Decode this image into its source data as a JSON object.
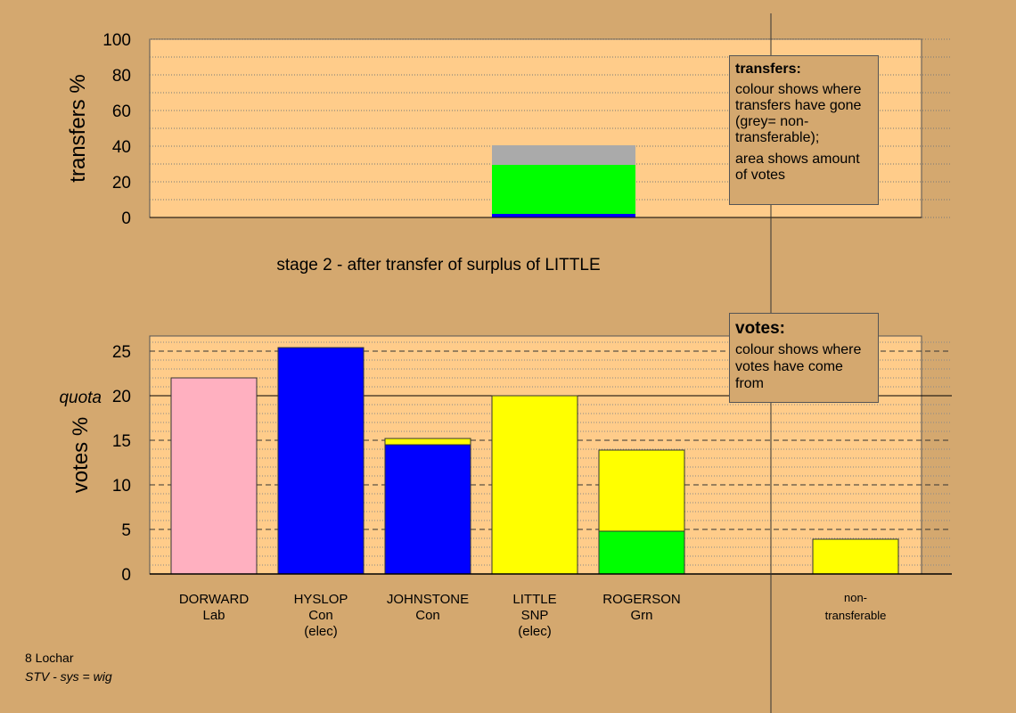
{
  "chart_data": [
    {
      "type": "bar",
      "stacked": true,
      "ylabel": "transfers %",
      "ylim": [
        0,
        100
      ],
      "yticks": [
        0,
        20,
        40,
        60,
        80,
        100
      ],
      "caption": "stage 2 - after transfer of surplus of LITTLE",
      "bars": [
        {
          "slot": 3,
          "segments": [
            {
              "value": 2,
              "color": "#0000ff"
            },
            {
              "value": 27.5,
              "color": "#00ff00"
            },
            {
              "value": 11,
              "color": "#aaaaaa"
            }
          ]
        }
      ],
      "grid": true
    },
    {
      "type": "bar",
      "stacked": true,
      "ylabel": "votes %",
      "quota_label": "quota",
      "quota": 20,
      "ylim": [
        0,
        25
      ],
      "yticks": [
        0,
        5,
        10,
        15,
        20,
        25
      ],
      "grid": true,
      "candidates": [
        {
          "name": "DORWARD",
          "party": "Lab",
          "note": "",
          "segments": [
            {
              "value": 22,
              "color": "#ffb0c0"
            }
          ]
        },
        {
          "name": "HYSLOP",
          "party": "Con",
          "note": "(elec)",
          "segments": [
            {
              "value": 25.4,
              "color": "#0000ff"
            }
          ]
        },
        {
          "name": "JOHNSTONE",
          "party": "Con",
          "note": "",
          "segments": [
            {
              "value": 14.5,
              "color": "#0000ff"
            },
            {
              "value": 0.7,
              "color": "#ffff00"
            }
          ]
        },
        {
          "name": "LITTLE",
          "party": "SNP",
          "note": "(elec)",
          "segments": [
            {
              "value": 20,
              "color": "#ffff00"
            }
          ]
        },
        {
          "name": "ROGERSON",
          "party": "Grn",
          "note": "",
          "segments": [
            {
              "value": 4.8,
              "color": "#00ff00"
            },
            {
              "value": 9.1,
              "color": "#ffff00"
            }
          ]
        },
        {
          "name": "",
          "party": "",
          "note": "",
          "segments": []
        }
      ],
      "non_transferable": {
        "line1": "non-",
        "line2": "transferable",
        "segments": [
          {
            "value": 3.9,
            "color": "#ffff00"
          }
        ]
      }
    }
  ],
  "legend_transfers": {
    "title": "transfers:",
    "text1": "colour shows where transfers have gone (grey= non-transferable);",
    "text2": "area shows amount of votes"
  },
  "legend_votes": {
    "title": "votes:",
    "text": "colour shows where votes have come from"
  },
  "footer": {
    "id": "8 Lochar",
    "system": "STV - sys = wig"
  },
  "colors": {
    "background": "#d4a86f",
    "plot_background": "#ffcc8a"
  }
}
